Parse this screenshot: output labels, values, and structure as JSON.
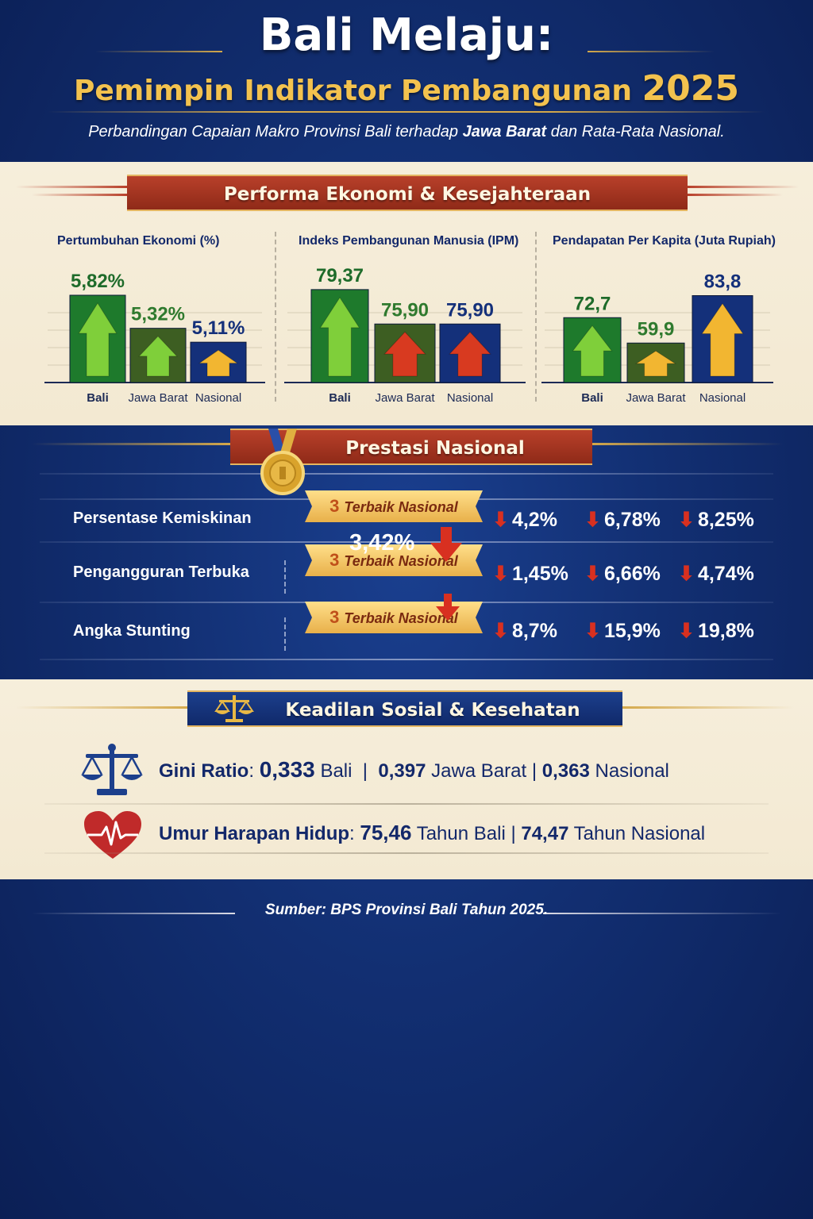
{
  "header": {
    "title": "Bali Melaju:",
    "subtitle_text": "Pemimpin Indikator Pembangunan",
    "subtitle_year": "2025",
    "description_prefix": "Perbandingan Capaian Makro Provinsi Bali terhadap ",
    "description_bold": "Jawa Barat",
    "description_suffix": " dan Rata-Rata Nasional."
  },
  "sections": {
    "economy": "Performa Ekonomi & Kesejahteraan",
    "national": "Prestasi Nasional",
    "social": "Keadilan Sosial & Kesehatan"
  },
  "colors": {
    "bali_bar": "#1e7a2c",
    "jabar_bar": "#3d5e22",
    "nasional_bar": "#14307a",
    "arrow_green": "#7fcf3a",
    "arrow_red": "#d83a20",
    "arrow_gold": "#f2b631",
    "ribbon_red": "#a8361f",
    "navy": "#13286a"
  },
  "chart_data": [
    {
      "type": "bar",
      "title": "Pertumbuhan Ekonomi (%)",
      "categories": [
        "Bali",
        "Jawa Barat",
        "Nasional"
      ],
      "values": [
        5.82,
        5.32,
        5.11
      ],
      "labels": [
        "5,82%",
        "5,32%",
        "5,11%"
      ],
      "arrows": [
        "up-green",
        "up-green",
        "up-gold"
      ],
      "ylim": [
        4.5,
        6.0
      ]
    },
    {
      "type": "bar",
      "title": "Indeks Pembangunan Manusia (IPM)",
      "categories": [
        "Bali",
        "Jawa Barat",
        "Nasional"
      ],
      "values": [
        79.37,
        75.9,
        75.9
      ],
      "labels": [
        "79,37",
        "75,90",
        "75,90"
      ],
      "arrows": [
        "up-green",
        "up-red",
        "up-red"
      ],
      "ylim": [
        70,
        80
      ]
    },
    {
      "type": "bar",
      "title": "Pendapatan Per Kapita (Juta Rupiah)",
      "categories": [
        "Bali",
        "Jawa Barat",
        "Nasional"
      ],
      "values": [
        72.7,
        59.9,
        83.8
      ],
      "labels": [
        "72,7",
        "59,9",
        "83,8"
      ],
      "arrows": [
        "up-green",
        "up-gold",
        "up-gold"
      ],
      "ylim": [
        40,
        90
      ]
    }
  ],
  "national": {
    "badge_rank": "3",
    "badge_text": "Terbaik Nasional",
    "floating_value": "3,42%",
    "rows": [
      {
        "label": "Persentase Kemiskinan",
        "values": [
          "4,2%",
          "6,78%",
          "8,25%"
        ]
      },
      {
        "label": "Pengangguran Terbuka",
        "values": [
          "1,45%",
          "6,66%",
          "4,74%"
        ]
      },
      {
        "label": "Angka Stunting",
        "values": [
          "8,7%",
          "15,9%",
          "19,8%"
        ]
      }
    ]
  },
  "social": {
    "gini": {
      "label": "Gini Ratio",
      "bali_value": "0,333",
      "bali_unit": "Bali",
      "jabar_value": "0,397",
      "jabar_unit": "Jawa Barat",
      "nas_value": "0,363",
      "nas_unit": "Nasional"
    },
    "life": {
      "label": "Umur Harapan Hidup",
      "bali_value": "75,46",
      "bali_unit": "Tahun",
      "bali_place": "Bali",
      "nas_value": "74,47",
      "nas_unit": "Tahun Nasional"
    }
  },
  "source": "Sumber: BPS Provinsi Bali Tahun 2025."
}
